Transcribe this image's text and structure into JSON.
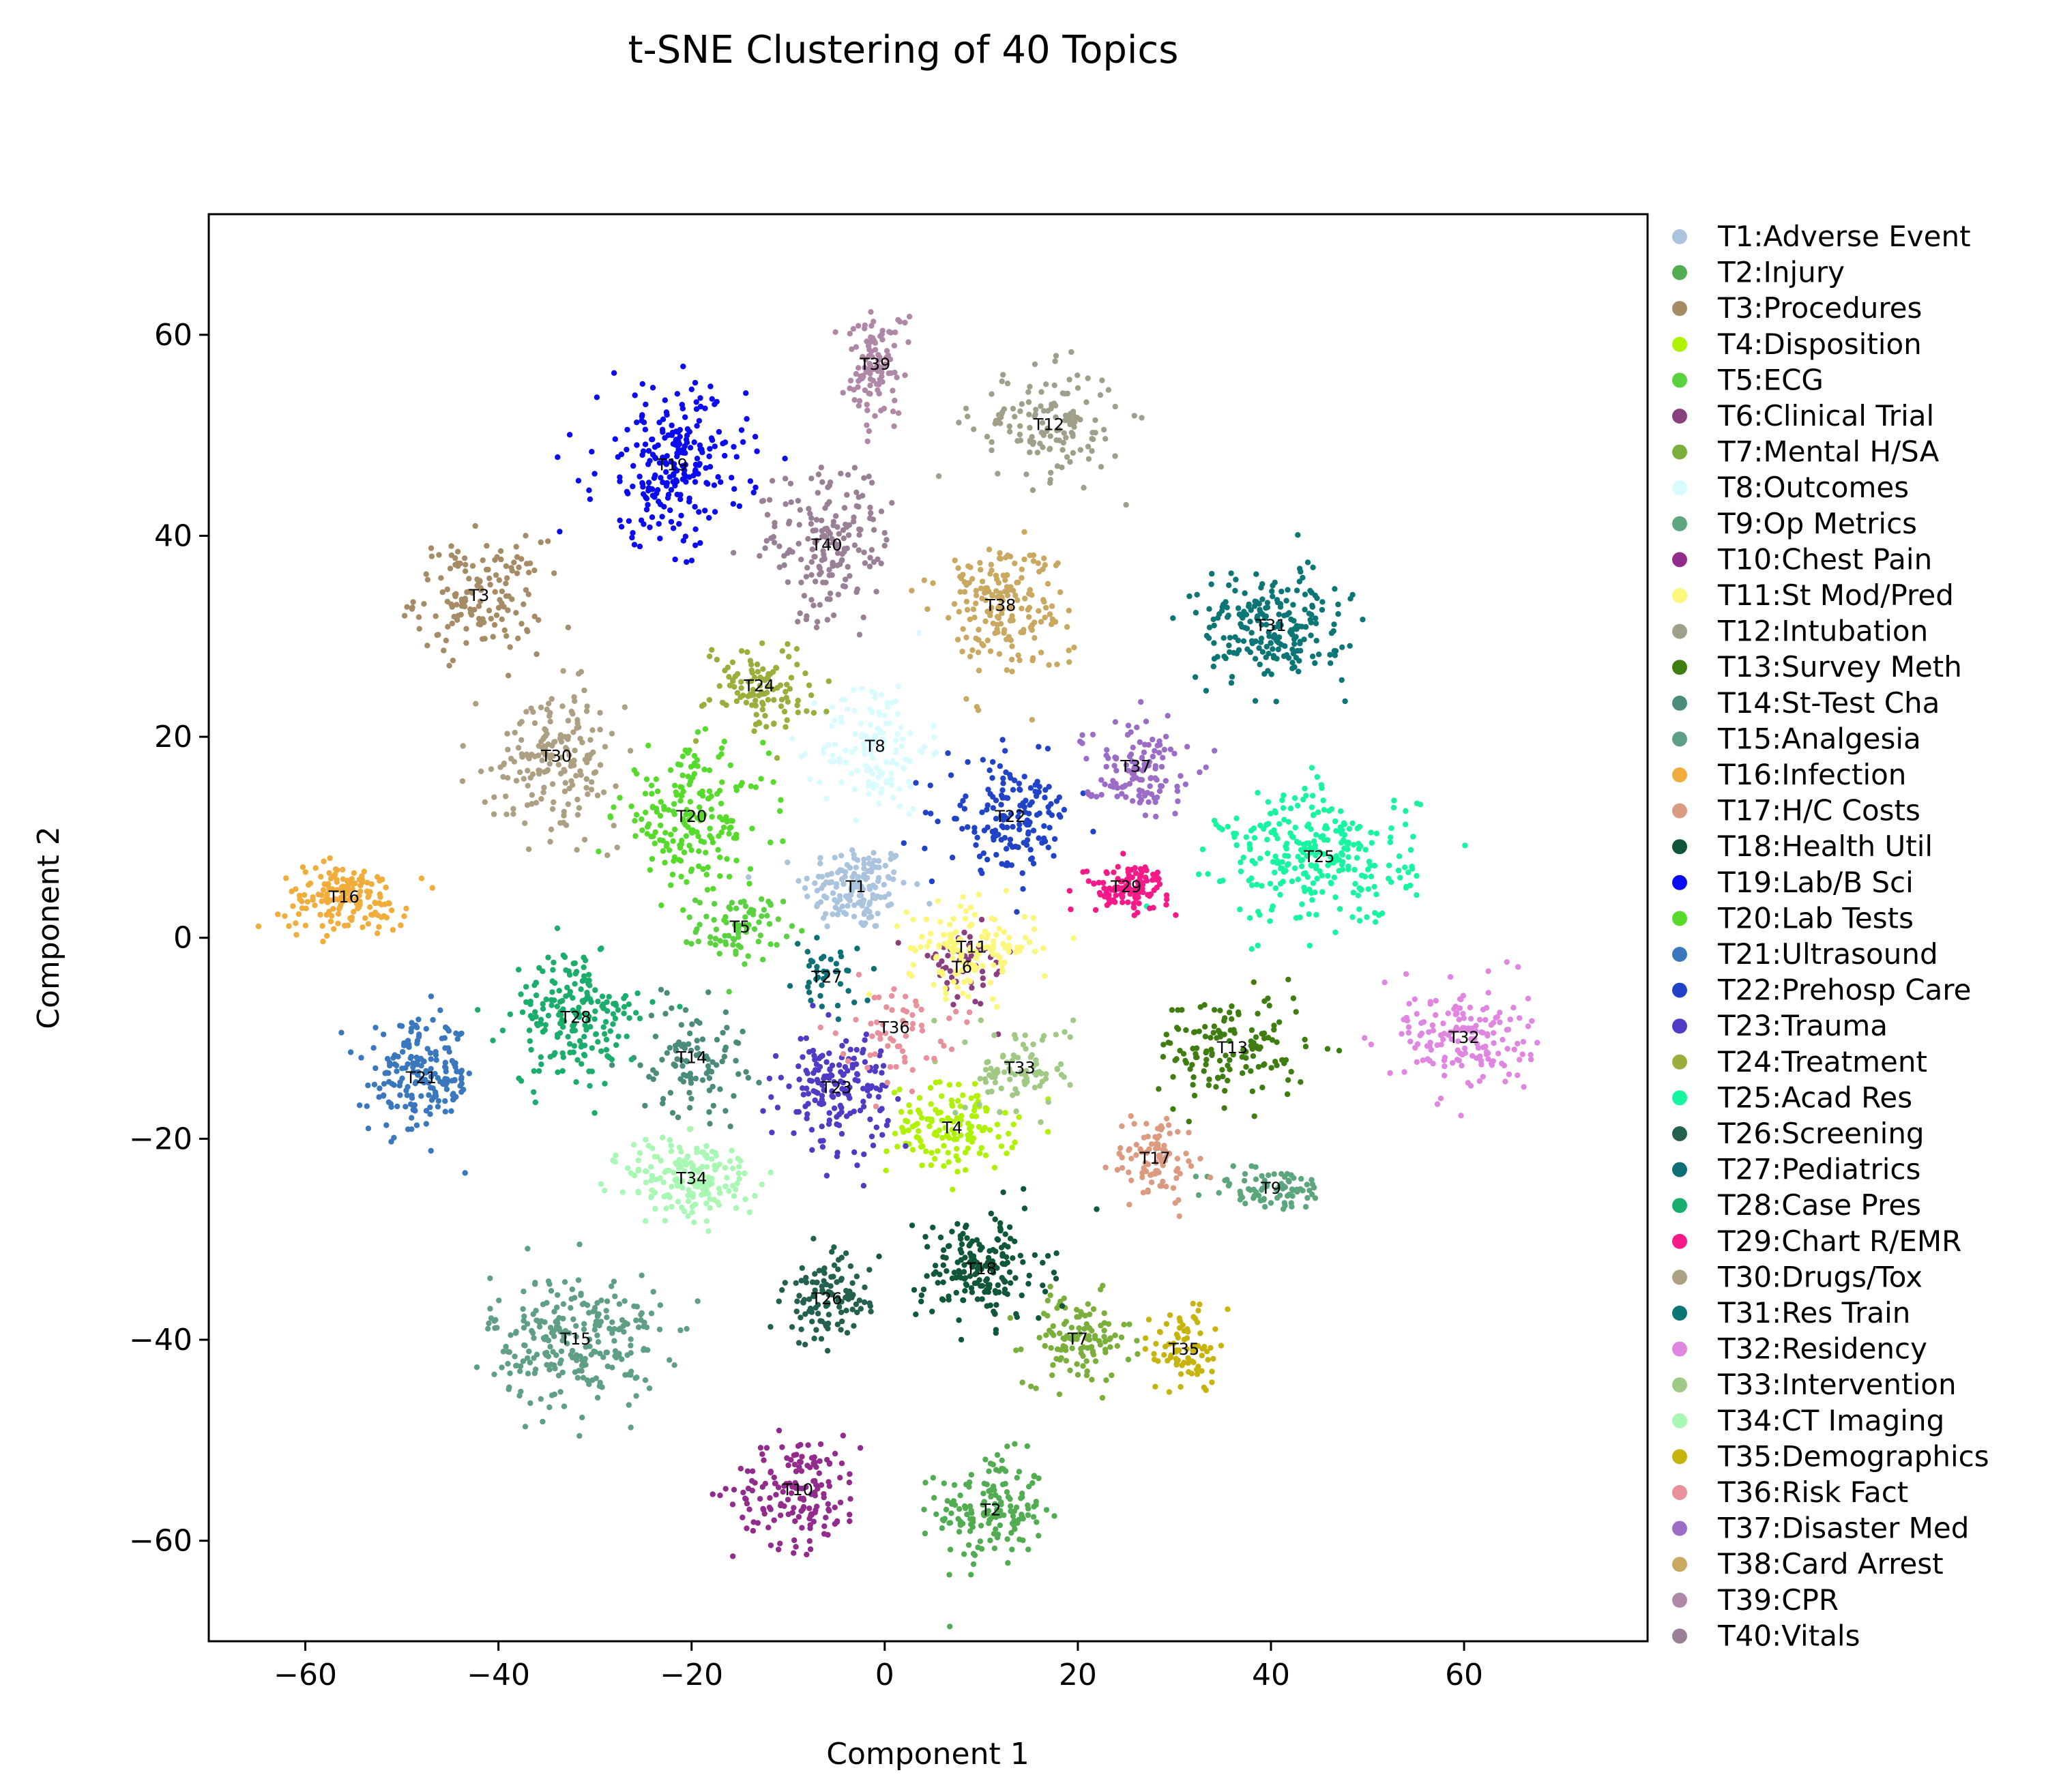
{
  "chart_data": {
    "type": "scatter",
    "title": "t-SNE Clustering of 40 Topics",
    "xlabel": "Component 1",
    "ylabel": "Component 2",
    "xlim": [
      -70,
      79
    ],
    "ylim": [
      -70,
      72
    ],
    "xticks": [
      -60,
      -40,
      -20,
      0,
      20,
      40,
      60
    ],
    "yticks": [
      -60,
      -40,
      -20,
      0,
      20,
      40,
      60
    ],
    "grid": false,
    "legend_position": "outside-right",
    "series": [
      {
        "label": "T1",
        "name": "T1:Adverse Event",
        "color": "#aac4de",
        "center": [
          -3,
          5
        ],
        "spread": [
          5,
          4
        ],
        "n": 150
      },
      {
        "label": "T2",
        "name": "T2:Injury",
        "color": "#52ad52",
        "center": [
          11,
          -57
        ],
        "spread": [
          5,
          5
        ],
        "n": 160
      },
      {
        "label": "T3",
        "name": "T3:Procedures",
        "color": "#a58c66",
        "center": [
          -42,
          34
        ],
        "spread": [
          6,
          5
        ],
        "n": 150
      },
      {
        "label": "T4",
        "name": "T4:Disposition",
        "color": "#aef200",
        "center": [
          7,
          -19
        ],
        "spread": [
          6,
          4
        ],
        "n": 140
      },
      {
        "label": "T5",
        "name": "T5:ECG",
        "color": "#5ad13e",
        "center": [
          -15,
          1
        ],
        "spread": [
          4,
          3
        ],
        "n": 80
      },
      {
        "label": "T6",
        "name": "T6:Clinical Trial",
        "color": "#8a3f7f",
        "center": [
          8,
          -3
        ],
        "spread": [
          5,
          4
        ],
        "n": 50
      },
      {
        "label": "T7",
        "name": "T7:Mental H/SA",
        "color": "#7aaf3c",
        "center": [
          20,
          -40
        ],
        "spread": [
          5,
          4
        ],
        "n": 120
      },
      {
        "label": "T8",
        "name": "T8:Outcomes",
        "color": "#d8fbff",
        "center": [
          -1,
          19
        ],
        "spread": [
          5,
          6
        ],
        "n": 140
      },
      {
        "label": "T9",
        "name": "T9:Op Metrics",
        "color": "#5da57c",
        "center": [
          40,
          -25
        ],
        "spread": [
          6,
          2
        ],
        "n": 80
      },
      {
        "label": "T10",
        "name": "T10:Chest Pain",
        "color": "#922c8c",
        "center": [
          -9,
          -55
        ],
        "spread": [
          6,
          5
        ],
        "n": 160
      },
      {
        "label": "T11",
        "name": "T11:St Mod/Pred",
        "color": "#fcf67b",
        "center": [
          9,
          -1
        ],
        "spread": [
          6,
          4
        ],
        "n": 140
      },
      {
        "label": "T12",
        "name": "T12:Intubation",
        "color": "#a0a08a",
        "center": [
          17,
          51
        ],
        "spread": [
          7,
          5
        ],
        "n": 140
      },
      {
        "label": "T13",
        "name": "T13:Survey Meth",
        "color": "#3f7d10",
        "center": [
          36,
          -11
        ],
        "spread": [
          7,
          5
        ],
        "n": 140
      },
      {
        "label": "T14",
        "name": "T14:St-Test Cha",
        "color": "#4b8b7c",
        "center": [
          -20,
          -12
        ],
        "spread": [
          5,
          5
        ],
        "n": 100
      },
      {
        "label": "T15",
        "name": "T15:Analgesia",
        "color": "#5f9f85",
        "center": [
          -32,
          -40
        ],
        "spread": [
          8,
          6
        ],
        "n": 260
      },
      {
        "label": "T16",
        "name": "T16:Infection",
        "color": "#f0ad3c",
        "center": [
          -56,
          4
        ],
        "spread": [
          6,
          3
        ],
        "n": 160
      },
      {
        "label": "T17",
        "name": "T17:H/C Costs",
        "color": "#db9b81",
        "center": [
          28,
          -22
        ],
        "spread": [
          4,
          4
        ],
        "n": 90
      },
      {
        "label": "T18",
        "name": "T18:Health Util",
        "color": "#10573a",
        "center": [
          10,
          -33
        ],
        "spread": [
          6,
          5
        ],
        "n": 180
      },
      {
        "label": "T19",
        "name": "T19:Lab/B Sci",
        "color": "#0a0bf0",
        "center": [
          -22,
          47
        ],
        "spread": [
          7,
          7
        ],
        "n": 240
      },
      {
        "label": "T20",
        "name": "T20:Lab Tests",
        "color": "#56da2c",
        "center": [
          -20,
          12
        ],
        "spread": [
          7,
          6
        ],
        "n": 200
      },
      {
        "label": "T21",
        "name": "T21:Ultrasound",
        "color": "#3a77bd",
        "center": [
          -48,
          -14
        ],
        "spread": [
          5,
          5
        ],
        "n": 190
      },
      {
        "label": "T22",
        "name": "T22:Prehosp Care",
        "color": "#2143c7",
        "center": [
          13,
          12
        ],
        "spread": [
          6,
          5
        ],
        "n": 160
      },
      {
        "label": "T23",
        "name": "T23:Trauma",
        "color": "#513bc4",
        "center": [
          -5,
          -15
        ],
        "spread": [
          5,
          5
        ],
        "n": 170
      },
      {
        "label": "T24",
        "name": "T24:Treatment",
        "color": "#9cad3c",
        "center": [
          -13,
          25
        ],
        "spread": [
          5,
          4
        ],
        "n": 110
      },
      {
        "label": "T25",
        "name": "T25:Acad Res",
        "color": "#17f5a0",
        "center": [
          45,
          8
        ],
        "spread": [
          9,
          6
        ],
        "n": 280
      },
      {
        "label": "T26",
        "name": "T26:Screening",
        "color": "#23604f",
        "center": [
          -6,
          -36
        ],
        "spread": [
          4,
          4
        ],
        "n": 110
      },
      {
        "label": "T27",
        "name": "T27:Pediatrics",
        "color": "#0e7077",
        "center": [
          -6,
          -4
        ],
        "spread": [
          3,
          3
        ],
        "n": 40
      },
      {
        "label": "T28",
        "name": "T28:Case Pres",
        "color": "#1aad6b",
        "center": [
          -32,
          -8
        ],
        "spread": [
          6,
          6
        ],
        "n": 200
      },
      {
        "label": "T29",
        "name": "T29:Chart R/EMR",
        "color": "#f51a88",
        "center": [
          25,
          5
        ],
        "spread": [
          4,
          2
        ],
        "n": 120
      },
      {
        "label": "T30",
        "name": "T30:Drugs/Tox",
        "color": "#ad9f82",
        "center": [
          -34,
          18
        ],
        "spread": [
          6,
          6
        ],
        "n": 180
      },
      {
        "label": "T31",
        "name": "T31:Res Train",
        "color": "#0c7575",
        "center": [
          40,
          31
        ],
        "spread": [
          7,
          5
        ],
        "n": 220
      },
      {
        "label": "T32",
        "name": "T32:Residency",
        "color": "#df87e0",
        "center": [
          60,
          -10
        ],
        "spread": [
          6,
          5
        ],
        "n": 160
      },
      {
        "label": "T33",
        "name": "T33:Intervention",
        "color": "#a1c986",
        "center": [
          14,
          -13
        ],
        "spread": [
          5,
          4
        ],
        "n": 90
      },
      {
        "label": "T34",
        "name": "T34:CT Imaging",
        "color": "#a8f8b3",
        "center": [
          -20,
          -24
        ],
        "spread": [
          6,
          4
        ],
        "n": 180
      },
      {
        "label": "T35",
        "name": "T35:Demographics",
        "color": "#c6b40d",
        "center": [
          31,
          -41
        ],
        "spread": [
          3,
          4
        ],
        "n": 80
      },
      {
        "label": "T36",
        "name": "T36:Risk Fact",
        "color": "#e8909b",
        "center": [
          1,
          -9
        ],
        "spread": [
          5,
          4
        ],
        "n": 60
      },
      {
        "label": "T37",
        "name": "T37:Disaster Med",
        "color": "#9b6dc6",
        "center": [
          26,
          17
        ],
        "spread": [
          5,
          4
        ],
        "n": 120
      },
      {
        "label": "T38",
        "name": "T38:Card Arrest",
        "color": "#c9a961",
        "center": [
          12,
          33
        ],
        "spread": [
          6,
          6
        ],
        "n": 190
      },
      {
        "label": "T39",
        "name": "T39:CPR",
        "color": "#af88a8",
        "center": [
          -1,
          57
        ],
        "spread": [
          3,
          5
        ],
        "n": 110
      },
      {
        "label": "T40",
        "name": "T40:Vitals",
        "color": "#9a8097",
        "center": [
          -6,
          39
        ],
        "spread": [
          6,
          7
        ],
        "n": 180
      }
    ]
  }
}
